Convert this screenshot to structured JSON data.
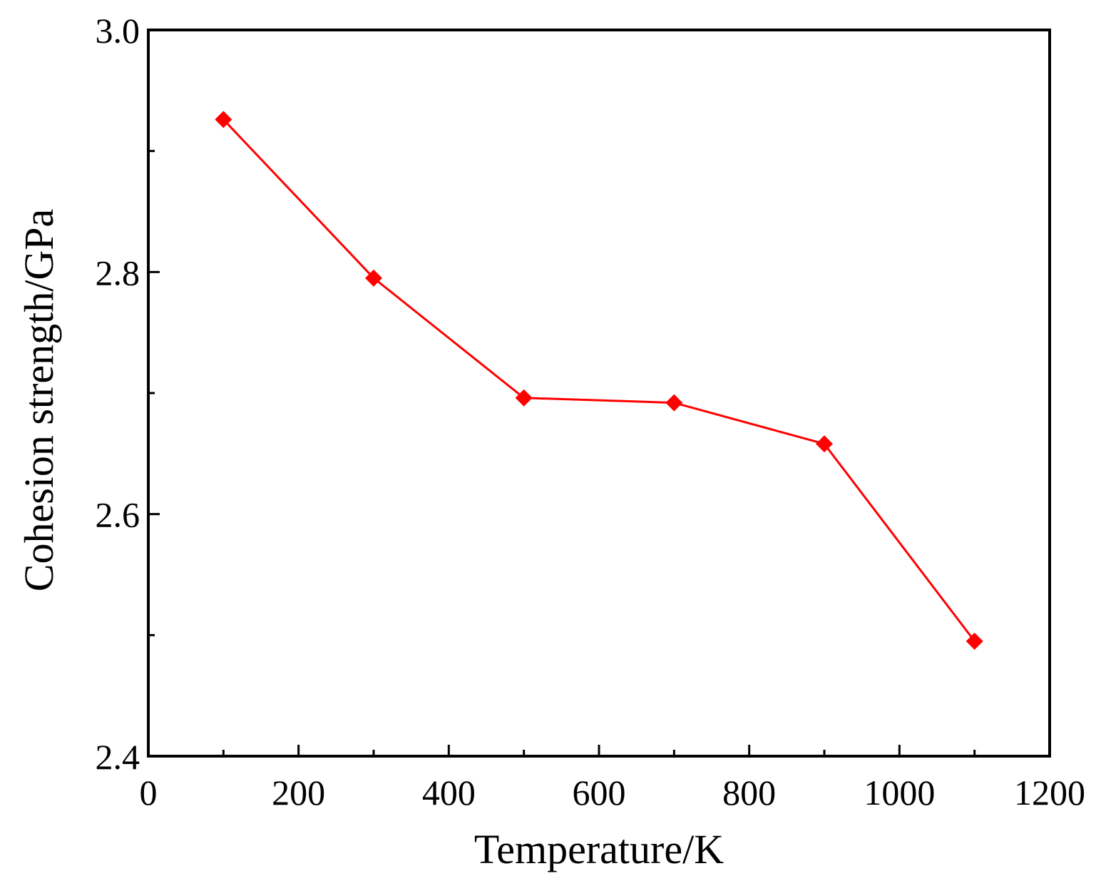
{
  "chart_data": {
    "type": "line",
    "xlabel": "Temperature/K",
    "ylabel": "Cohesion strength/GPa",
    "xlim": [
      0,
      1200
    ],
    "ylim": [
      2.4,
      3.0
    ],
    "x_ticks": [
      0,
      200,
      400,
      600,
      800,
      1000,
      1200
    ],
    "x_tick_labels": [
      "0",
      "200",
      "400",
      "600",
      "800",
      "1000",
      "1200"
    ],
    "y_ticks": [
      2.4,
      2.6,
      2.8,
      3.0
    ],
    "y_tick_labels": [
      "2.4",
      "2.6",
      "2.8",
      "3.0"
    ],
    "x_minor_ticks": [
      100,
      300,
      500,
      700,
      900,
      1100
    ],
    "y_minor_ticks": [
      2.5,
      2.7,
      2.9
    ],
    "grid": false,
    "series": [
      {
        "x": [
          100,
          300,
          500,
          700,
          900,
          1100
        ],
        "y": [
          2.926,
          2.795,
          2.696,
          2.692,
          2.658,
          2.495
        ],
        "color": "#ff0000",
        "marker": "diamond"
      }
    ]
  }
}
